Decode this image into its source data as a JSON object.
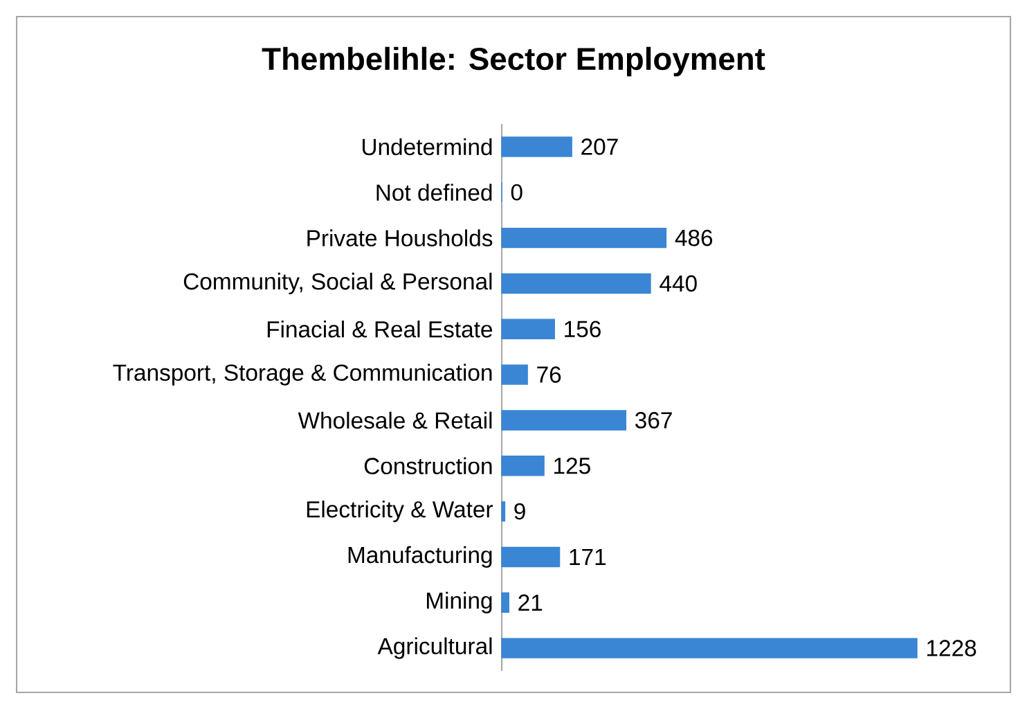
{
  "chart_data": {
    "type": "bar",
    "orientation": "horizontal",
    "title": "Thembelihle: Sector Employment",
    "categories": [
      "Undetermind",
      "Not defined",
      "Private Housholds",
      "Community, Social & Personal",
      "Finacial & Real Estate",
      "Transport, Storage & Communication",
      "Wholesale & Retail",
      "Construction",
      "Electricity & Water",
      "Manufacturing",
      "Mining",
      "Agricultural"
    ],
    "values": [
      207,
      0,
      486,
      440,
      156,
      76,
      367,
      125,
      9,
      171,
      21,
      1228
    ],
    "color": "#3a86d4",
    "data_labels": true
  }
}
